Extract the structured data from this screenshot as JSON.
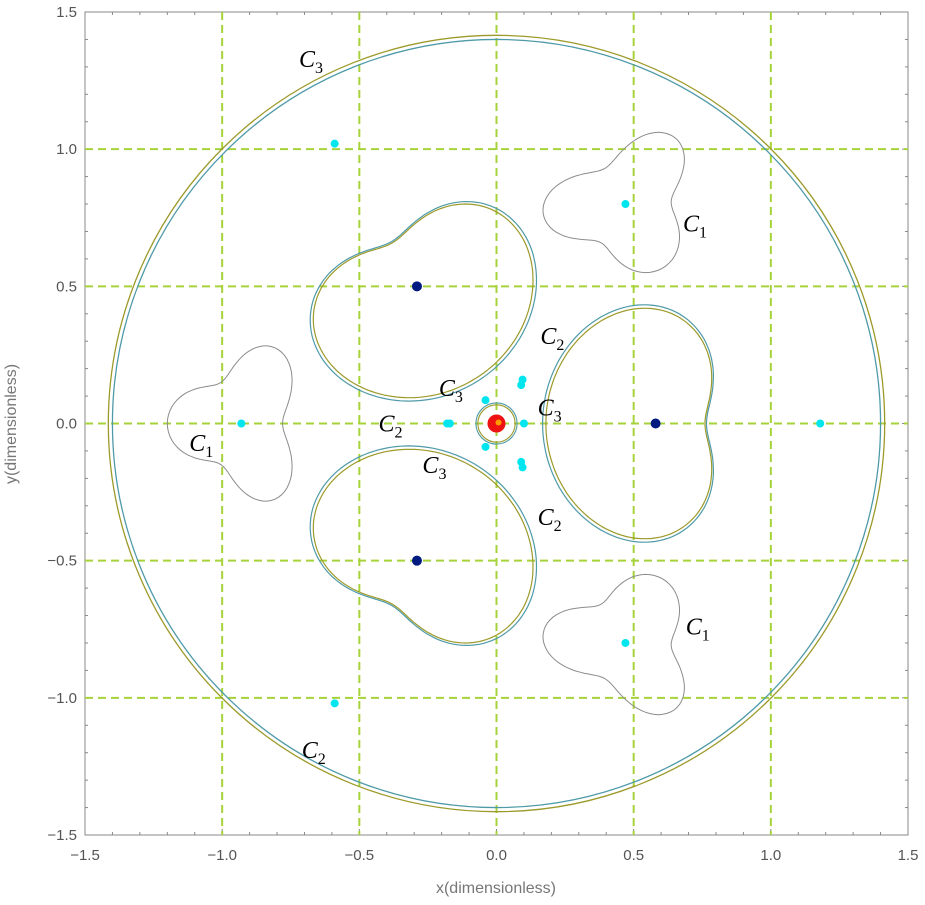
{
  "chart_data": {
    "type": "scatter",
    "xlabel": "x(dimensionless)",
    "ylabel": "y(dimensionless)",
    "xlim": [
      -1.5,
      1.5
    ],
    "ylim": [
      -1.5,
      1.5
    ],
    "grid": "dashed at major ticks",
    "x_ticks": [
      "-1.5",
      "-1.0",
      "-0.5",
      "0.0",
      "0.5",
      "1.0",
      "1.5"
    ],
    "y_ticks": [
      "-1.5",
      "-1.0",
      "-0.5",
      "0.0",
      "0.5",
      "1.0",
      "1.5"
    ],
    "colors": {
      "grid": "#a6d23a",
      "curve_c1": "#8c8c8c",
      "curve_olive": "#9c9a2a",
      "curve_teal": "#4f9aa8",
      "libration_point": "#00e5ee",
      "primary": "#001a80",
      "central": "#ee1111",
      "central_core": "#ff9900"
    },
    "libration_points": [
      {
        "x": 1.18,
        "y": 0.0
      },
      {
        "x": -0.93,
        "y": 0.0
      },
      {
        "x": 0.47,
        "y": 0.8
      },
      {
        "x": 0.47,
        "y": -0.8
      },
      {
        "x": -0.59,
        "y": 1.02
      },
      {
        "x": -0.59,
        "y": -1.02
      },
      {
        "x": 0.1,
        "y": 0.0
      },
      {
        "x": -0.17,
        "y": 0.0
      },
      {
        "x": -0.18,
        "y": 0.0
      },
      {
        "x": 0.09,
        "y": 0.14
      },
      {
        "x": 0.095,
        "y": 0.16
      },
      {
        "x": 0.09,
        "y": -0.14
      },
      {
        "x": 0.095,
        "y": -0.16
      },
      {
        "x": -0.04,
        "y": 0.085
      },
      {
        "x": -0.04,
        "y": -0.085
      }
    ],
    "primaries": [
      {
        "x": 0.58,
        "y": 0.0
      },
      {
        "x": -0.29,
        "y": 0.5
      },
      {
        "x": -0.29,
        "y": -0.5
      }
    ],
    "central_body": {
      "x": 0.0,
      "y": 0.0
    },
    "curve_labels": [
      {
        "base": "C",
        "sub": "3",
        "x": -0.72,
        "y": 1.3
      },
      {
        "base": "C",
        "sub": "1",
        "x": 0.68,
        "y": 0.7
      },
      {
        "base": "C",
        "sub": "1",
        "x": -1.12,
        "y": -0.1
      },
      {
        "base": "C",
        "sub": "1",
        "x": 0.69,
        "y": -0.77
      },
      {
        "base": "C",
        "sub": "2",
        "x": 0.16,
        "y": 0.29
      },
      {
        "base": "C",
        "sub": "3",
        "x": -0.21,
        "y": 0.1
      },
      {
        "base": "C",
        "sub": "3",
        "x": 0.15,
        "y": 0.03
      },
      {
        "base": "C",
        "sub": "2",
        "x": -0.43,
        "y": -0.03
      },
      {
        "base": "C",
        "sub": "3",
        "x": -0.27,
        "y": -0.18
      },
      {
        "base": "C",
        "sub": "2",
        "x": 0.15,
        "y": -0.37
      },
      {
        "base": "C",
        "sub": "2",
        "x": -0.71,
        "y": -1.22
      }
    ]
  }
}
